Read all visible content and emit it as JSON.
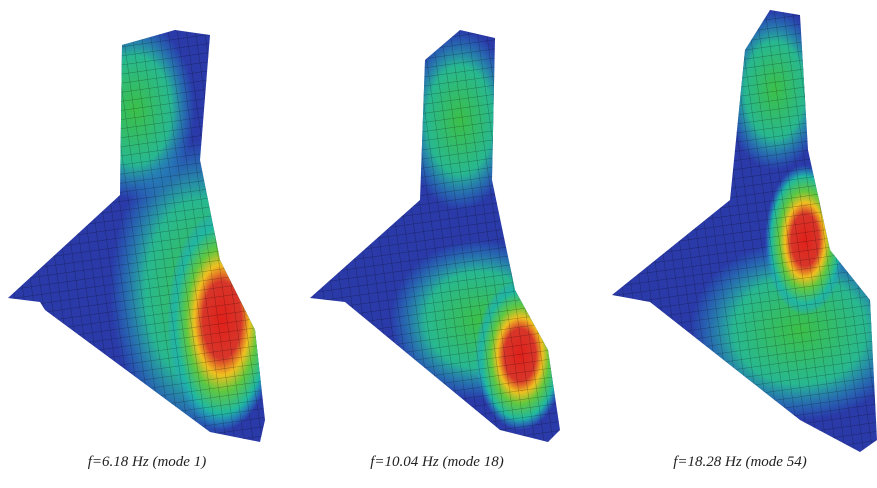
{
  "figure": {
    "panels": [
      {
        "caption": "f=6.18 Hz (mode 1)"
      },
      {
        "caption": "f=10.04 Hz (mode 18)"
      },
      {
        "caption": "f=18.28 Hz (mode 54)"
      }
    ]
  }
}
